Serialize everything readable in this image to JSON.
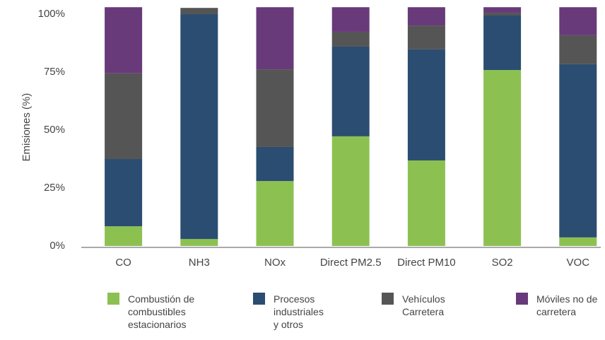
{
  "chart_data": {
    "type": "stacked_bar",
    "y_label": "Emisiones (%)",
    "categories": [
      "CO",
      "NH3",
      "NOx",
      "Direct PM2.5",
      "Direct PM10",
      "SO2",
      "VOC"
    ],
    "series": [
      {
        "name": "Combustión de combustibles estacionarios",
        "color": "#8cc152",
        "values": [
          8.5,
          3,
          28,
          47.3,
          36.9,
          75.9,
          3.7
        ]
      },
      {
        "name": "Procesos industriales y otros",
        "color": "#2b4d71",
        "values": [
          29,
          97,
          14.7,
          38.7,
          47.9,
          23.5,
          74.7
        ]
      },
      {
        "name": "Vehículos Carretera",
        "color": "#555555",
        "values": [
          37,
          2.7,
          33.5,
          6.4,
          10.3,
          1.2,
          12.5
        ]
      },
      {
        "name": "Móviles no de carretera",
        "color": "#683a7a",
        "values": [
          28.5,
          0,
          26.8,
          10.6,
          7.9,
          2.4,
          12.1
        ]
      }
    ],
    "ylim": [
      0,
      103
    ],
    "yticks": [
      {
        "value": 0,
        "label": "0%"
      },
      {
        "value": 25,
        "label": "25%"
      },
      {
        "value": 50,
        "label": "50%"
      },
      {
        "value": 75,
        "label": "75%"
      },
      {
        "value": 100,
        "label": "100%"
      }
    ]
  }
}
